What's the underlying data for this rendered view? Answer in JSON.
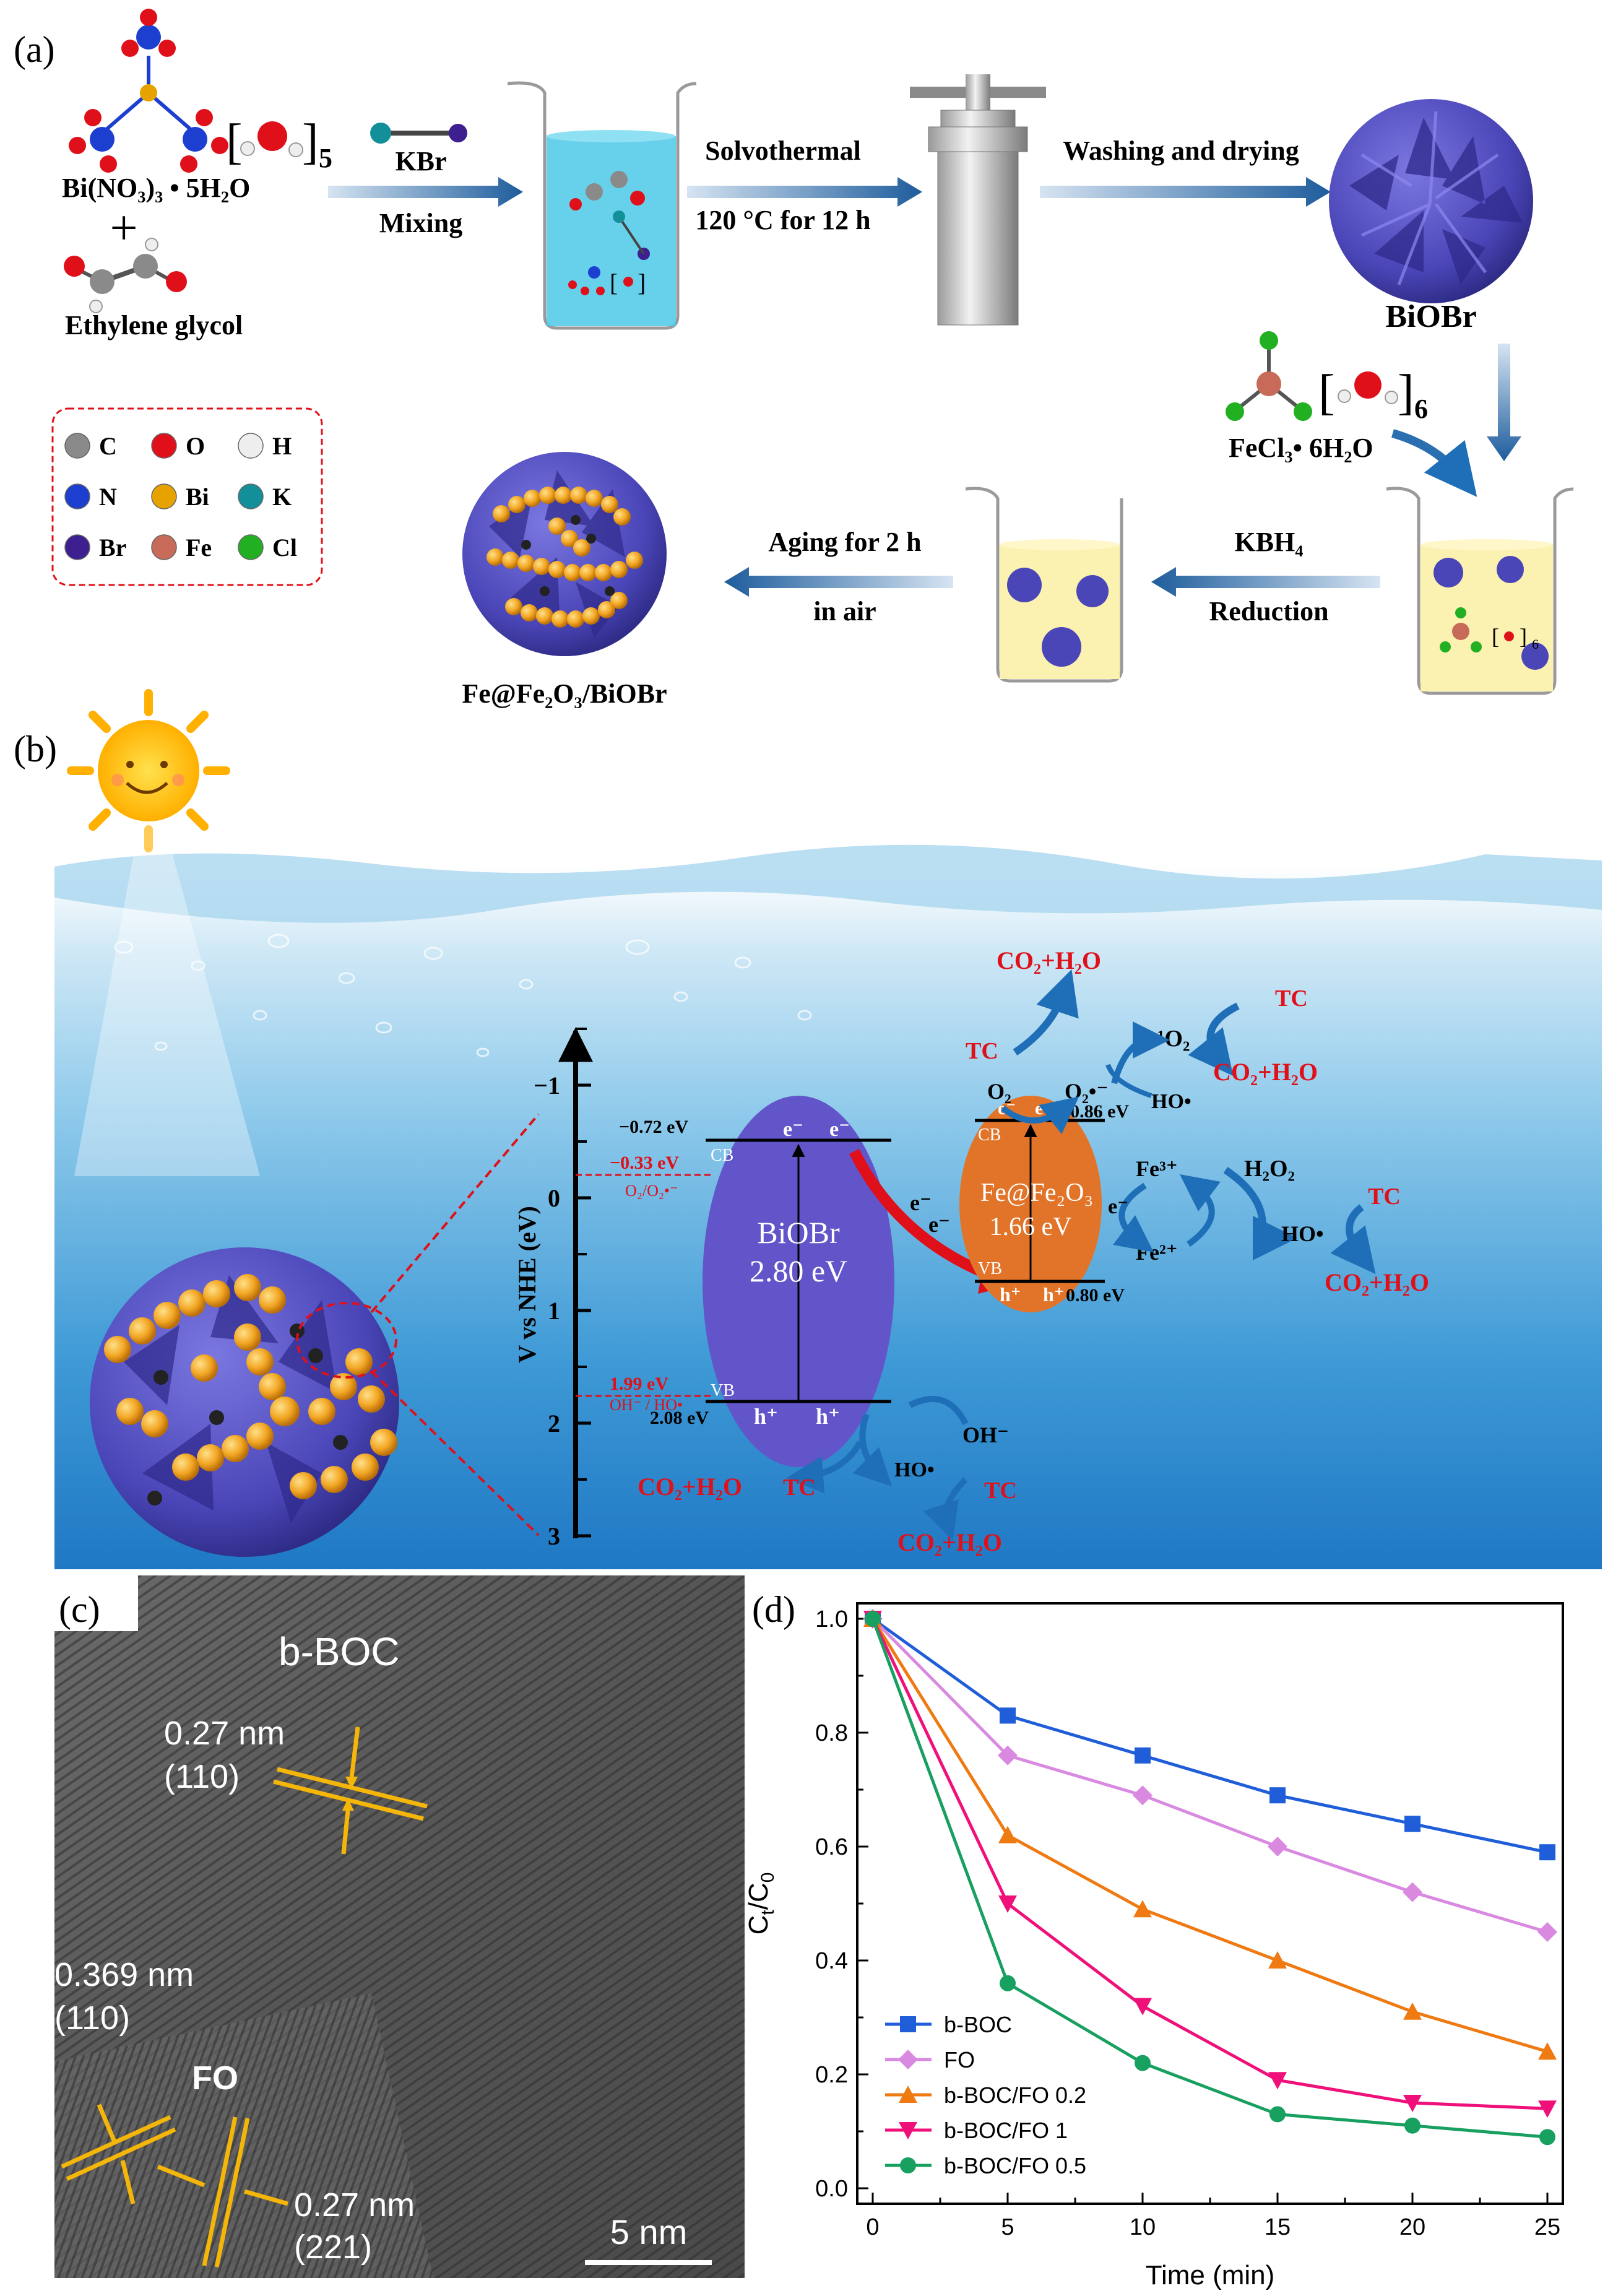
{
  "panel_a": {
    "label": "(a)",
    "reagent1": "Bi(NO₃)₃ • 5H₂O",
    "water_count": "5",
    "plus": "+",
    "reagent2": "Ethylene glycol",
    "kbr": "KBr",
    "mixing": "Mixing",
    "solvothermal": "Solvothermal",
    "solvo_cond": "120 °C for 12 h",
    "washing": "Washing and drying",
    "biobr": "BiOBr",
    "fecl3": "FeCl₃• 6H₂O",
    "fecl_water_count": "6",
    "kbh4": "KBH₄",
    "reduction": "Reduction",
    "aging1": "Aging for 2 h",
    "aging2": "in air",
    "product": "Fe@Fe₂O₃/BiOBr",
    "legend": [
      {
        "symbol": "C",
        "color": "#8a8a8a"
      },
      {
        "symbol": "O",
        "color": "#e0101a"
      },
      {
        "symbol": "H",
        "color": "#eeeeee"
      },
      {
        "symbol": "N",
        "color": "#1d3fd0"
      },
      {
        "symbol": "Bi",
        "color": "#e6a300"
      },
      {
        "symbol": "K",
        "color": "#138f9a"
      },
      {
        "symbol": "Br",
        "color": "#3d1f8f"
      },
      {
        "symbol": "Fe",
        "color": "#c76a5a"
      },
      {
        "symbol": "Cl",
        "color": "#22b022"
      }
    ]
  },
  "panel_b": {
    "label": "(b)",
    "axis_label": "V vs NHE (eV)",
    "ticks": [
      "−1",
      "0",
      "1",
      "2",
      "3"
    ],
    "biobr_name": "BiOBr",
    "biobr_gap": "2.80 eV",
    "fe_name": "Fe@Fe₂O₃",
    "fe_gap": "1.66 eV",
    "cb_biobr": "−0.72 eV",
    "vb_biobr": "2.08 eV",
    "cb_fe": "−0.86 eV",
    "vb_fe": "0.80 eV",
    "o2_level": "−0.33 eV",
    "o2_couple": "O₂/O₂•⁻",
    "oh_level": "1.99 eV",
    "oh_couple": "OH⁻ / HO•",
    "cb": "CB",
    "vb": "VB",
    "e": "e⁻",
    "h": "h⁺",
    "o2": "O₂",
    "o2rad": "O₂•⁻",
    "singlet": "¹O₂",
    "tc": "TC",
    "co2": "CO₂+H₂O",
    "ho": "HO•",
    "ohm": "OH⁻",
    "fe3": "Fe³⁺",
    "fe2": "Fe²⁺",
    "h2o2": "H₂O₂"
  },
  "panel_c": {
    "label": "(c)",
    "title": "b-BOC",
    "d1": "0.27 nm",
    "d1_hkl": "(110)",
    "d2": "0.369 nm",
    "d2_hkl": "(110)",
    "fo": "FO",
    "d3": "0.27 nm",
    "d3_hkl": "(221)",
    "scale": "5 nm"
  },
  "chart_data": {
    "type": "line",
    "panel_label": "(d)",
    "xlabel": "Time (min)",
    "ylabel": "Ct/C0",
    "xlim": [
      0,
      25
    ],
    "ylim": [
      0,
      1.0
    ],
    "x_ticks": [
      "0",
      "5",
      "10",
      "15",
      "20",
      "25"
    ],
    "y_ticks": [
      "0.0",
      "0.2",
      "0.4",
      "0.6",
      "0.8",
      "1.0"
    ],
    "x": [
      0,
      5,
      10,
      15,
      20,
      25
    ],
    "legend_position": "bottom-left",
    "grid": false,
    "series": [
      {
        "name": "b-BOC",
        "color": "#1f5ed8",
        "marker": "square",
        "values": [
          1.0,
          0.83,
          0.76,
          0.69,
          0.64,
          0.59
        ]
      },
      {
        "name": "FO",
        "color": "#d98ae0",
        "marker": "diamond",
        "values": [
          1.0,
          0.76,
          0.69,
          0.6,
          0.52,
          0.45
        ]
      },
      {
        "name": "b-BOC/FO 0.2",
        "color": "#f07a12",
        "marker": "triangle-up",
        "values": [
          1.0,
          0.62,
          0.49,
          0.4,
          0.31,
          0.24
        ]
      },
      {
        "name": "b-BOC/FO 1",
        "color": "#f0107a",
        "marker": "triangle-down",
        "values": [
          1.0,
          0.5,
          0.32,
          0.19,
          0.15,
          0.14
        ]
      },
      {
        "name": "b-BOC/FO 0.5",
        "color": "#17a060",
        "marker": "circle",
        "values": [
          1.0,
          0.36,
          0.22,
          0.13,
          0.11,
          0.09
        ]
      }
    ]
  }
}
